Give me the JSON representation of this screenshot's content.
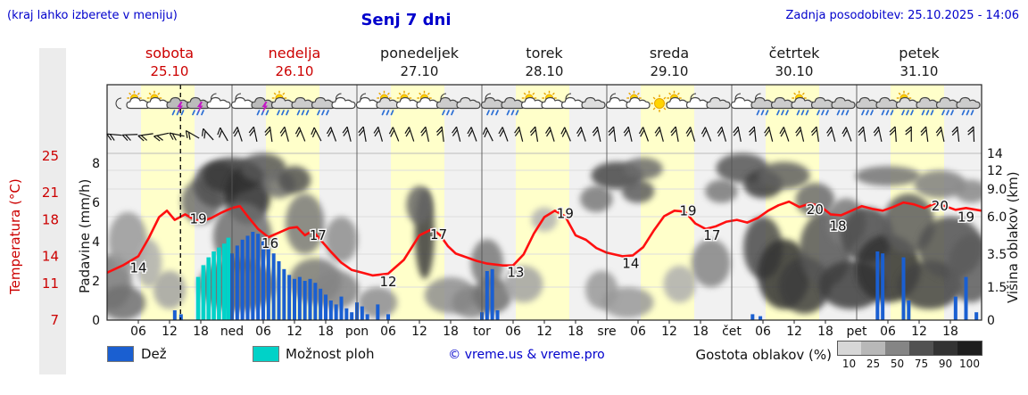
{
  "header": {
    "hint": "(kraj lahko izberete v meniju)",
    "title": "Senj 7 dni",
    "updated": "Zadnja posodobitev: 25.10.2025 - 14:06"
  },
  "axes": {
    "temp_label": "Temperatura (°C)",
    "temp_ticks": [
      25,
      21,
      18,
      14,
      11,
      7
    ],
    "precip_label": "Padavine (mm/h)",
    "precip_ticks": [
      8,
      6,
      4,
      2,
      0
    ],
    "cloud_label": "Višina oblakov (km)",
    "cloud_ticks": [
      [
        "14",
        14
      ],
      [
        "12",
        12
      ],
      [
        "9.0",
        9
      ],
      [
        "6.0",
        6
      ],
      [
        "3.5",
        3.5
      ],
      [
        "1.5",
        1.5
      ],
      [
        "0",
        0
      ]
    ]
  },
  "days": [
    {
      "name": "sobota",
      "date": "25.10",
      "weekend": true
    },
    {
      "name": "nedelja",
      "date": "26.10",
      "weekend": true
    },
    {
      "name": "ponedeljek",
      "date": "27.10",
      "weekend": false
    },
    {
      "name": "torek",
      "date": "28.10",
      "weekend": false
    },
    {
      "name": "sreda",
      "date": "29.10",
      "weekend": false
    },
    {
      "name": "četrtek",
      "date": "30.10",
      "weekend": false
    },
    {
      "name": "petek",
      "date": "31.10",
      "weekend": false
    }
  ],
  "x_labels": [
    "06",
    "12",
    "18",
    "ned",
    "06",
    "12",
    "18",
    "pon",
    "06",
    "12",
    "18",
    "tor",
    "06",
    "12",
    "18",
    "sre",
    "06",
    "12",
    "18",
    "čet",
    "06",
    "12",
    "18",
    "pet",
    "06",
    "12",
    "18"
  ],
  "legend": {
    "rain": "Dež",
    "showers": "Možnost ploh",
    "credit": "© vreme.us & vreme.pro",
    "cloud_density": "Gostota oblakov (%)",
    "density_ticks": [
      10,
      25,
      50,
      75,
      90,
      100
    ]
  },
  "colors": {
    "accent_blue": "#0000cc",
    "accent_red": "#cc0000",
    "temp_line": "#ff1010",
    "rain": "#1a5fd1",
    "showers": "#00d2c8",
    "day_band": "#ffffca",
    "plot_bg": "#f1f1f1"
  },
  "chart_data": {
    "type": "meteogram",
    "title": "Senj 7 dni",
    "ylabel_left": "Temperatura (°C) / Padavine (mm/h)",
    "ylabel_right": "Višina oblakov (km)",
    "temp_axis_range": [
      7,
      25
    ],
    "precip_axis_range": [
      0,
      8
    ],
    "cloud_axis_range_km": [
      0,
      14
    ],
    "hours_total": 168,
    "now_hour": 14.1,
    "temp": [
      [
        0,
        12.2
      ],
      [
        3,
        13
      ],
      [
        6,
        14
      ],
      [
        8,
        16
      ],
      [
        10,
        18.3
      ],
      [
        11.5,
        19
      ],
      [
        13,
        18
      ],
      [
        15,
        18.6
      ],
      [
        16.5,
        18.1
      ],
      [
        18,
        17.8
      ],
      [
        20,
        18.2
      ],
      [
        22,
        18.8
      ],
      [
        24,
        19.3
      ],
      [
        25.5,
        19.5
      ],
      [
        27,
        18.4
      ],
      [
        29,
        17
      ],
      [
        31,
        16.1
      ],
      [
        33,
        16.6
      ],
      [
        35,
        17.1
      ],
      [
        36.5,
        17.2
      ],
      [
        38,
        16.3
      ],
      [
        39.5,
        16.8
      ],
      [
        41,
        15.8
      ],
      [
        43,
        14.5
      ],
      [
        45,
        13.3
      ],
      [
        47,
        12.5
      ],
      [
        49,
        12.2
      ],
      [
        51,
        11.9
      ],
      [
        54,
        12.1
      ],
      [
        57,
        13.6
      ],
      [
        60,
        16.3
      ],
      [
        62.5,
        17
      ],
      [
        64,
        16.3
      ],
      [
        65.5,
        15.1
      ],
      [
        67,
        14.3
      ],
      [
        69,
        13.9
      ],
      [
        71,
        13.5
      ],
      [
        73,
        13.2
      ],
      [
        76,
        13
      ],
      [
        78,
        13
      ],
      [
        80,
        14.2
      ],
      [
        82,
        16.5
      ],
      [
        84,
        18.3
      ],
      [
        86,
        19
      ],
      [
        88,
        18.4
      ],
      [
        90,
        16.3
      ],
      [
        92,
        15.8
      ],
      [
        94,
        14.9
      ],
      [
        96,
        14.4
      ],
      [
        99,
        14
      ],
      [
        101,
        14.1
      ],
      [
        103,
        15
      ],
      [
        105,
        16.8
      ],
      [
        107,
        18.4
      ],
      [
        109,
        19
      ],
      [
        111,
        18.9
      ],
      [
        113,
        17.6
      ],
      [
        115,
        17
      ],
      [
        117,
        17.3
      ],
      [
        119,
        17.8
      ],
      [
        121,
        18
      ],
      [
        123,
        17.7
      ],
      [
        125,
        18.2
      ],
      [
        127,
        19
      ],
      [
        129,
        19.6
      ],
      [
        131,
        20
      ],
      [
        133,
        19.4
      ],
      [
        135,
        19.8
      ],
      [
        137,
        19.5
      ],
      [
        139,
        18.6
      ],
      [
        141,
        18.5
      ],
      [
        143,
        19
      ],
      [
        145,
        19.5
      ],
      [
        147,
        19.2
      ],
      [
        149,
        19
      ],
      [
        151,
        19.4
      ],
      [
        153,
        19.9
      ],
      [
        155,
        19.7
      ],
      [
        157,
        19.3
      ],
      [
        159,
        19.8
      ],
      [
        161,
        19.5
      ],
      [
        163,
        19.1
      ],
      [
        165,
        19.3
      ],
      [
        168,
        19
      ]
    ],
    "temp_labels": [
      [
        6,
        14,
        18
      ],
      [
        17.5,
        19,
        14
      ],
      [
        31.3,
        16,
        11
      ],
      [
        40.5,
        17,
        12
      ],
      [
        54,
        12,
        13
      ],
      [
        63.7,
        17,
        11
      ],
      [
        78.5,
        13,
        13
      ],
      [
        88,
        19,
        8
      ],
      [
        100.6,
        14,
        13
      ],
      [
        111.6,
        19,
        5
      ],
      [
        116.2,
        17,
        12
      ],
      [
        136,
        20,
        14
      ],
      [
        140.4,
        18,
        12
      ],
      [
        160,
        20,
        10
      ],
      [
        165,
        19,
        12
      ]
    ],
    "rain_bars": [
      [
        13,
        0.5
      ],
      [
        14.2,
        0.3
      ],
      [
        24,
        3.4
      ],
      [
        25,
        3.8
      ],
      [
        26,
        4.1
      ],
      [
        27,
        4.3
      ],
      [
        28,
        4.5
      ],
      [
        29,
        4.4
      ],
      [
        30,
        4.2
      ],
      [
        31,
        3.8
      ],
      [
        32,
        3.4
      ],
      [
        33,
        3.0
      ],
      [
        34,
        2.6
      ],
      [
        35,
        2.3
      ],
      [
        36,
        2.1
      ],
      [
        37,
        2.2
      ],
      [
        38,
        2.0
      ],
      [
        39,
        2.1
      ],
      [
        40,
        1.9
      ],
      [
        41,
        1.6
      ],
      [
        42,
        1.3
      ],
      [
        43,
        1.0
      ],
      [
        44,
        0.8
      ],
      [
        45,
        1.2
      ],
      [
        46,
        0.6
      ],
      [
        47,
        0.4
      ],
      [
        48,
        0.9
      ],
      [
        49,
        0.7
      ],
      [
        50,
        0.3
      ],
      [
        52,
        0.8
      ],
      [
        54,
        0.3
      ],
      [
        72,
        0.4
      ],
      [
        73,
        2.5
      ],
      [
        74,
        2.6
      ],
      [
        75,
        0.5
      ],
      [
        124,
        0.3
      ],
      [
        125.5,
        0.2
      ],
      [
        148,
        3.5
      ],
      [
        149,
        3.4
      ],
      [
        153,
        3.2
      ],
      [
        154,
        1.0
      ],
      [
        163,
        1.2
      ],
      [
        165,
        2.2
      ],
      [
        167,
        0.4
      ]
    ],
    "shower_bars": [
      [
        17.5,
        2.2
      ],
      [
        18.5,
        2.8
      ],
      [
        19.5,
        3.2
      ],
      [
        20.5,
        3.5
      ],
      [
        21.5,
        3.7
      ],
      [
        22.5,
        3.9
      ],
      [
        23.3,
        4.2
      ]
    ],
    "icons": [
      "moon",
      "sun-cloud",
      "sun-cloud",
      "storm",
      "storm",
      "moon-cloud",
      "moon-cloud",
      "storm",
      "sun-rain",
      "rain",
      "rain",
      "moon-cloud",
      "moon-cloud",
      "sun-rain",
      "sun-cloud",
      "sun-cloud",
      "moon-rain",
      "cloud",
      "moon-rain",
      "rain",
      "sun-cloud",
      "sun-cloud",
      "moon-cloud",
      "cloud",
      "moon-cloud",
      "sun-cloud",
      "sun",
      "sun-cloud",
      "moon-cloud",
      "cloud",
      "moon-cloud",
      "moon-rain",
      "rain",
      "sun-rain",
      "rain",
      "rain",
      "rain",
      "rain",
      "sun-rain",
      "rain",
      "rain",
      "rain"
    ],
    "wind_angles": [
      185,
      178,
      172,
      168,
      192,
      210,
      228,
      240,
      252,
      258,
      262,
      255,
      248,
      243,
      250,
      256,
      260,
      254,
      248,
      252,
      258,
      263,
      256,
      250,
      244,
      250,
      256,
      261,
      253,
      247,
      252,
      258,
      263,
      257,
      250,
      255,
      260,
      253,
      248,
      254,
      259,
      264,
      256,
      251,
      257,
      262,
      255,
      250,
      262,
      258,
      266,
      270,
      263,
      258,
      264,
      268
    ],
    "clouds": [
      [
        1,
        2,
        6,
        3,
        55
      ],
      [
        4,
        4.5,
        6,
        4,
        40
      ],
      [
        3,
        0.8,
        7,
        1.6,
        60
      ],
      [
        8,
        3,
        4,
        3,
        30
      ],
      [
        12,
        1.5,
        5,
        2,
        35
      ],
      [
        18,
        8,
        6,
        5,
        60
      ],
      [
        21,
        10,
        7,
        6,
        75
      ],
      [
        24,
        11,
        9,
        5,
        88
      ],
      [
        27,
        9,
        7,
        7,
        92
      ],
      [
        30,
        12,
        7,
        4,
        72
      ],
      [
        26,
        5,
        9,
        5,
        60
      ],
      [
        25,
        1.8,
        12,
        2.8,
        68
      ],
      [
        33,
        10,
        5,
        4,
        60
      ],
      [
        36,
        10.5,
        5,
        4,
        75
      ],
      [
        38,
        6,
        6,
        5,
        55
      ],
      [
        40,
        2,
        8,
        2.5,
        55
      ],
      [
        45,
        4.5,
        5,
        3,
        45
      ],
      [
        44,
        1.5,
        7,
        2,
        50
      ],
      [
        52,
        0.8,
        6,
        1.4,
        45
      ],
      [
        61,
        5.5,
        3,
        7,
        85
      ],
      [
        60,
        7.5,
        4,
        4,
        65
      ],
      [
        66,
        1.2,
        8,
        1.8,
        45
      ],
      [
        70,
        0.8,
        6,
        1.4,
        50
      ],
      [
        73,
        3,
        5,
        3,
        55
      ],
      [
        74,
        1.2,
        6,
        1.8,
        60
      ],
      [
        80,
        1.8,
        6,
        2,
        35
      ],
      [
        84,
        6,
        4,
        2,
        28
      ],
      [
        94,
        8,
        5,
        3,
        55
      ],
      [
        95,
        1.5,
        5,
        2,
        40
      ],
      [
        98,
        11,
        8,
        4,
        80
      ],
      [
        103,
        12,
        6,
        3,
        62
      ],
      [
        102,
        9,
        5,
        3,
        70
      ],
      [
        100,
        0.8,
        8,
        1.4,
        40
      ],
      [
        110,
        1.8,
        5,
        2,
        30
      ],
      [
        116,
        3,
        6,
        3,
        50
      ],
      [
        118,
        9,
        5,
        3,
        55
      ],
      [
        122,
        12,
        8,
        4,
        72
      ],
      [
        126,
        10,
        6,
        4,
        85
      ],
      [
        130,
        11,
        8,
        4,
        68
      ],
      [
        126,
        4,
        6,
        4,
        78
      ],
      [
        130,
        2.5,
        8,
        4,
        90
      ],
      [
        134,
        1.8,
        8,
        3,
        85
      ],
      [
        138,
        4,
        8,
        5,
        72
      ],
      [
        136,
        8,
        6,
        4,
        62
      ],
      [
        142,
        6,
        6,
        4,
        55
      ],
      [
        143,
        1.8,
        10,
        2.6,
        85
      ],
      [
        146,
        5,
        8,
        4,
        78
      ],
      [
        150,
        2.8,
        10,
        4,
        90
      ],
      [
        154,
        6,
        8,
        5,
        70
      ],
      [
        158,
        1.8,
        10,
        2.6,
        82
      ],
      [
        162,
        4,
        10,
        4,
        75
      ],
      [
        166,
        2.8,
        7,
        4,
        70
      ],
      [
        150,
        11,
        10,
        3,
        58
      ],
      [
        160,
        10,
        8,
        4,
        52
      ],
      [
        166,
        9,
        5,
        3,
        48
      ]
    ]
  }
}
